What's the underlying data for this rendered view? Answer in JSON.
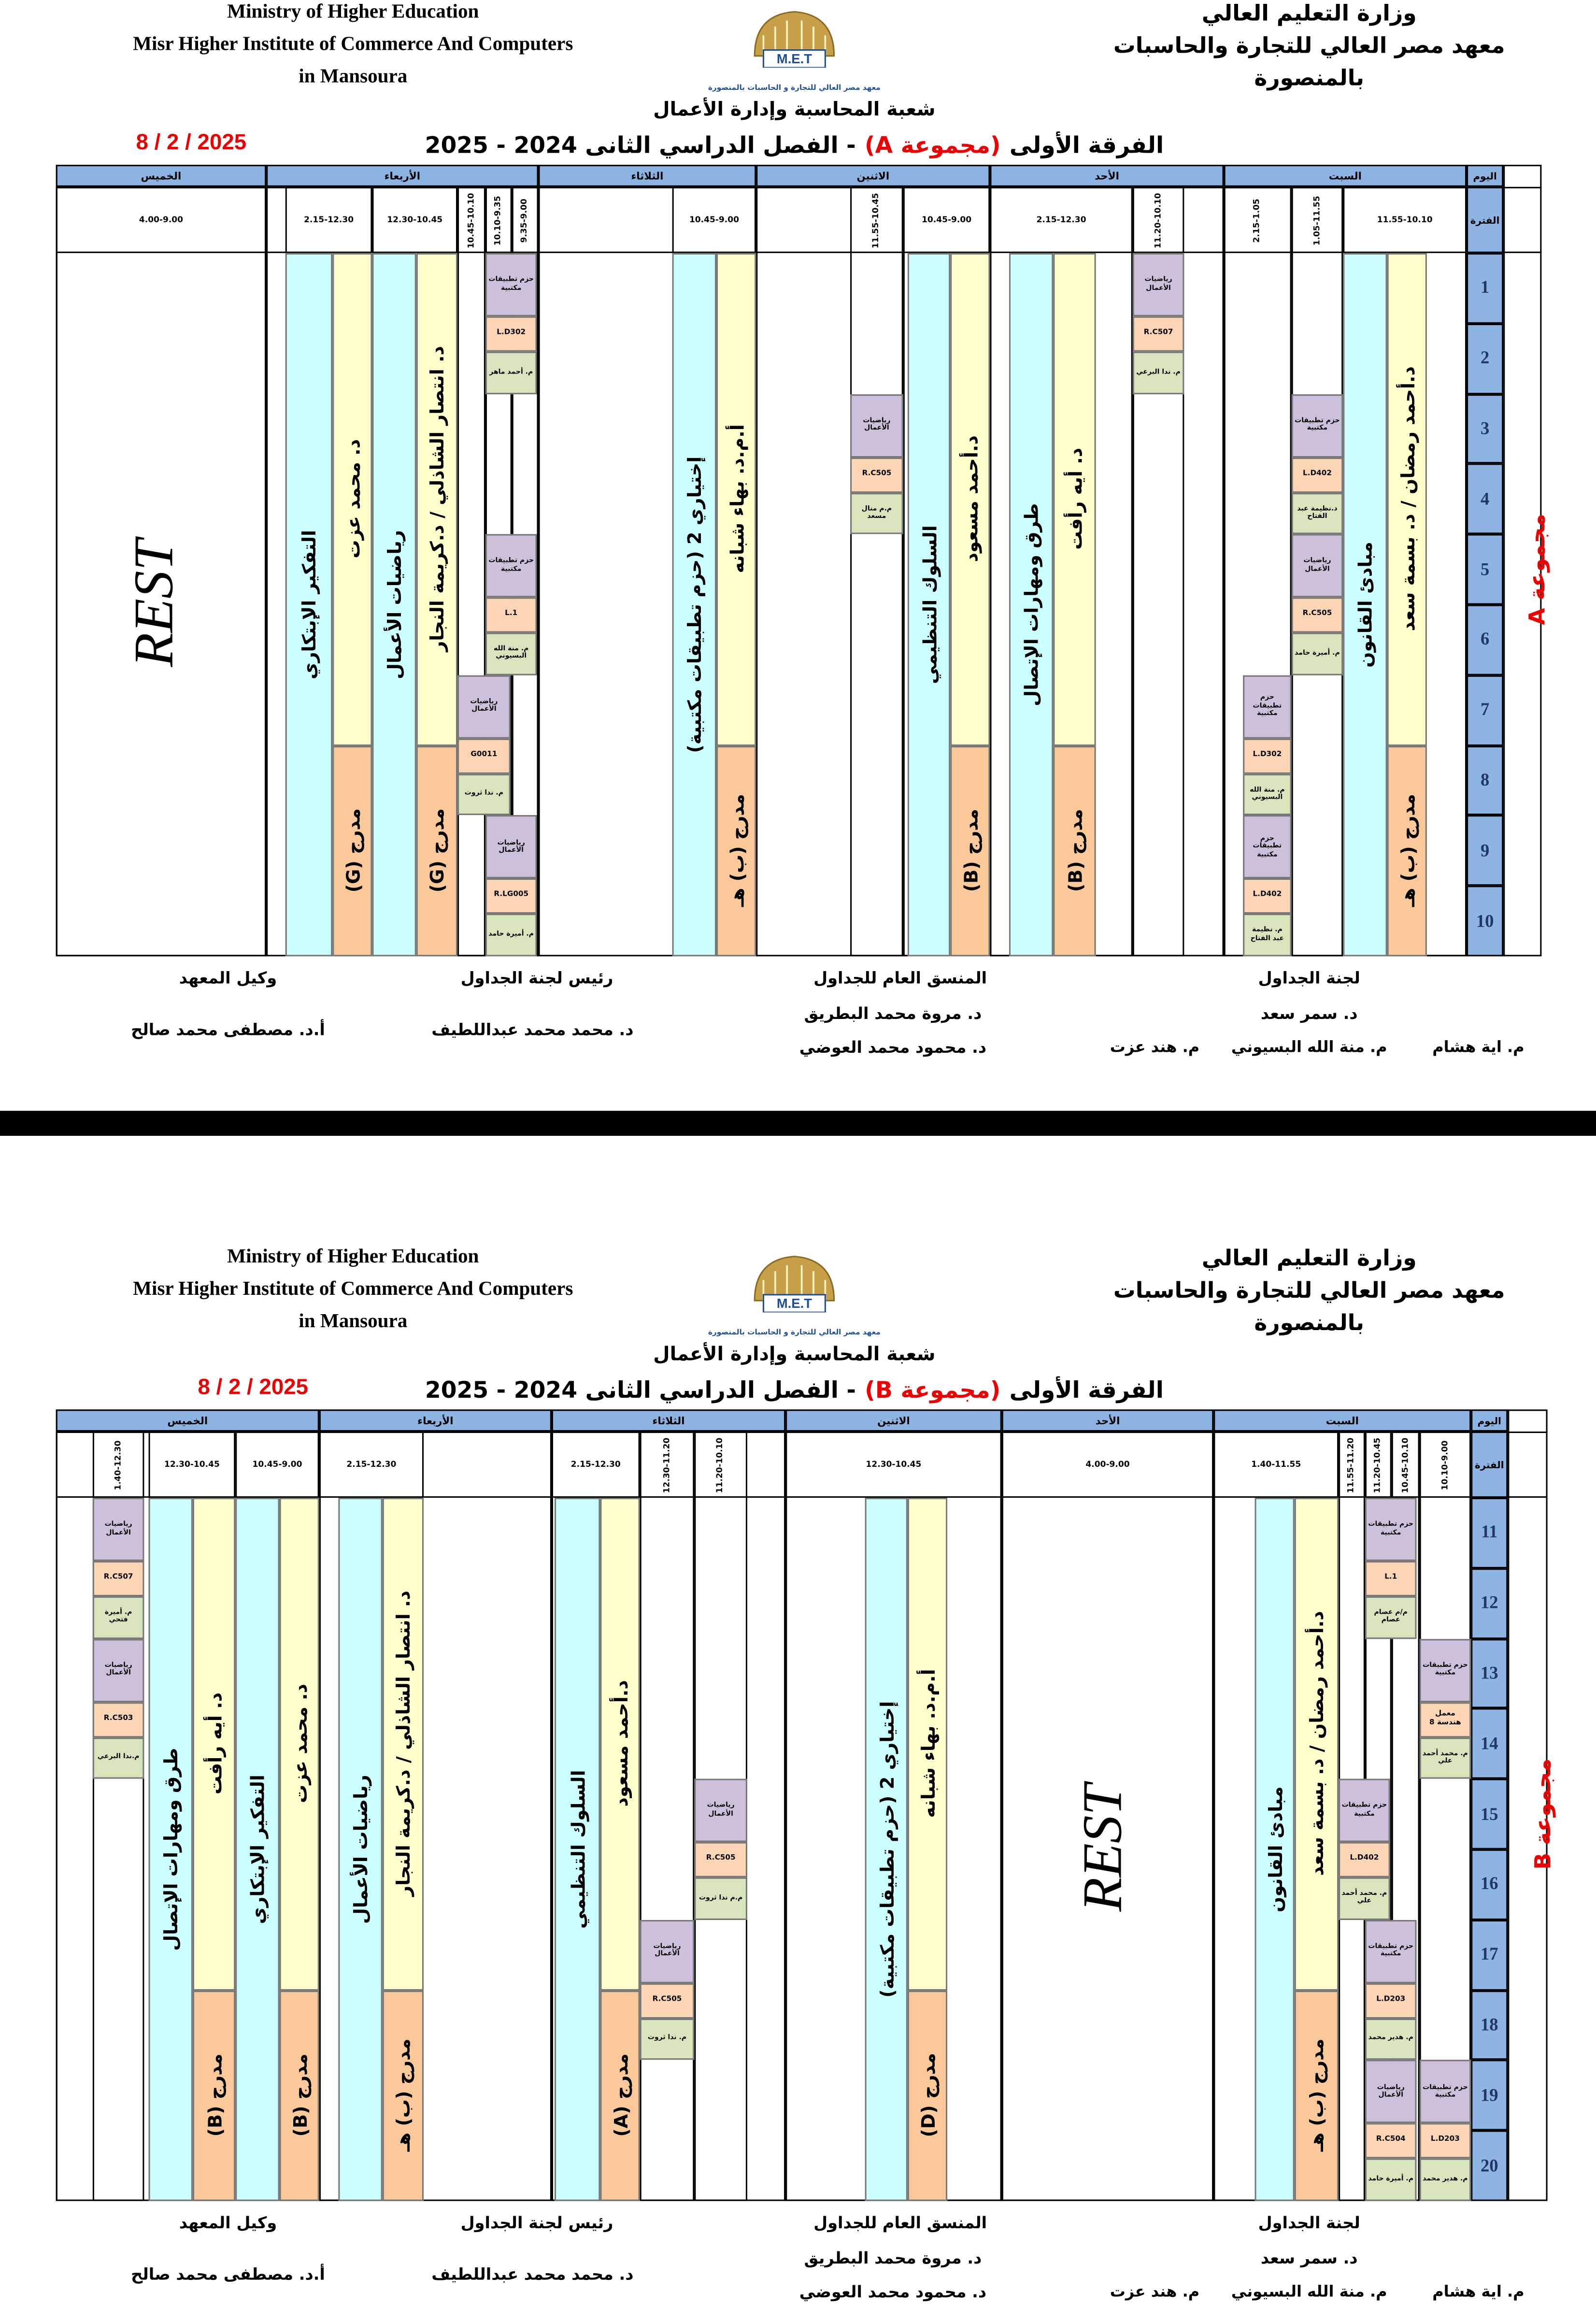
{
  "sheets": [
    {
      "header": {
        "en": [
          "Ministry of Higher Education",
          "Misr Higher Institute of Commerce And Computers",
          "in Mansoura"
        ],
        "ar": [
          "وزارة التعليم العالي",
          "معهد مصر العالي للتجارة والحاسبات",
          "بالمنصورة"
        ],
        "logo": "M.E.T",
        "logo_caption": "معهد مصر العالي للتجارة و الحاسبات بالمنصورة",
        "department": "شعبة المحاسبة وإدارة الأعمال",
        "title": [
          "الفرقة الأولى",
          "(مجموعة A)",
          "- الفصل الدراسي الثانى 2024 - 2025"
        ],
        "date": "8 / 2 / 2025"
      },
      "table": {
        "corner_day": "اليوم",
        "corner_period": "الفترة",
        "group": "مجموعة A",
        "rows": [
          1,
          2,
          3,
          4,
          5,
          6,
          7,
          8,
          9,
          10
        ],
        "days": [
          {
            "name": "السبت",
            "periods": [
              "2.15-1.05",
              "1.05-11.55",
              "11.55-10.10"
            ]
          },
          {
            "name": "الأحد",
            "periods": [
              "2.15-12.30",
              "11.20-10.10"
            ]
          },
          {
            "name": "الاثنين",
            "periods": [
              "11.55-10.45",
              "10.45-9.00"
            ]
          },
          {
            "name": "الثلاثاء",
            "periods": [
              "10.45-9.00"
            ]
          },
          {
            "name": "الأربعاء",
            "periods": [
              "2.15-12.30",
              "12.30-10.45",
              "10.45-10.10",
              "10.10-9.35",
              "9.35-9.00"
            ]
          },
          {
            "name": "الخميس",
            "periods": [
              "4.00-9.00"
            ]
          }
        ],
        "strips": [
          "مبادئ القانون",
          "د.أحمد رمضان / د. بسمة سعد",
          "مدرج (ب) هـ",
          "طرق ومهارات الإتصال",
          "د. أيه رأفت",
          "مدرج (B)",
          "السلوك التنظيمي",
          "د.أحمد مسعود",
          "مدرج (B)",
          "إختياري 2 (حزم تطبيقات مكتبية)",
          "أ.م.د. بهاء شبانه",
          "مدرج (ب) هـ",
          "التفكير الإبتكاري",
          "د. محمد عزت",
          "مدرج (G)",
          "رياضيات الأعمال",
          "د. انتصار الشاذلي / د.كريمة النجار",
          "مدرج (G)"
        ],
        "boxes": [
          {
            "subject": "حزم تطبيقات مكتبية",
            "room": "L.D402",
            "teacher": "د.نظيمة عبد الفتاح"
          },
          {
            "subject": "رياضيات الأعمال",
            "room": "R.C505",
            "teacher": "م. أميرة حامد"
          },
          {
            "subject": "حزم تطبيقات مكتبية",
            "room": "L.D302",
            "teacher": "م. منة الله البسيوني"
          },
          {
            "subject": "حزم تطبيقات مكتبية",
            "room": "L.D402",
            "teacher": "م. نظيمة عبد الفتاح"
          },
          {
            "subject": "رياضيات الأعمال",
            "room": "R.C507",
            "teacher": "م. ندا البرعي"
          },
          {
            "subject": "رياضيات الأعمال",
            "room": "R.C505",
            "teacher": "م.م منال مسعد"
          },
          {
            "subject": "حزم تطبيقات مكتبية",
            "room": "L.D302",
            "teacher": "م. أحمد ماهر"
          },
          {
            "subject": "حزم تطبيقات مكتبية",
            "room": "L.1",
            "teacher": "م. منة الله البسيوني"
          },
          {
            "subject": "رياضيات الأعمال",
            "room": "G0011",
            "teacher": "م. ندا ثروت"
          },
          {
            "subject": "رياضيات الأعمال",
            "room": "R.LG005",
            "teacher": "م. أميرة حامد"
          }
        ],
        "rest": [
          "REST"
        ]
      },
      "footer": {
        "committee": {
          "title": "لجنة الجداول",
          "head": "د. سمر سعد",
          "members": [
            "م. اية هشام",
            "م. منة الله البسيوني",
            "م. هند عزت"
          ]
        },
        "coordinator": {
          "title": "المنسق العام للجداول",
          "names": [
            "د. مروة محمد البطريق",
            "د. محمود محمد العوضي"
          ]
        },
        "chair": {
          "title": "رئيس لجنة الجداول",
          "name": "د. محمد محمد عبداللطيف"
        },
        "deputy": {
          "title": "وكيل المعهد",
          "name": "أ.د. مصطفى محمد صالح"
        }
      }
    },
    {
      "header": {
        "en": [
          "Ministry of Higher Education",
          "Misr Higher Institute of Commerce And Computers",
          "in Mansoura"
        ],
        "ar": [
          "وزارة التعليم العالي",
          "معهد مصر العالي للتجارة والحاسبات",
          "بالمنصورة"
        ],
        "logo": "M.E.T",
        "logo_caption": "معهد مصر العالي للتجارة و الحاسبات بالمنصورة",
        "department": "شعبة المحاسبة وإدارة الأعمال",
        "title": [
          "الفرقة الأولى",
          "(مجموعة B)",
          "- الفصل الدراسي الثانى 2024 - 2025"
        ],
        "date": "8 / 2 / 2025"
      },
      "table": {
        "corner_day": "اليوم",
        "corner_period": "الفترة",
        "group": "مجموعة B",
        "rows": [
          11,
          12,
          13,
          14,
          15,
          16,
          17,
          18,
          19,
          20
        ],
        "days": [
          {
            "name": "السبت",
            "periods": [
              "1.40-11.55",
              "11.55-11.20",
              "11.20-10.45",
              "10.45-10.10",
              "10.10-9.00"
            ]
          },
          {
            "name": "الأحد",
            "periods": [
              "4.00-9.00"
            ]
          },
          {
            "name": "الاثنين",
            "periods": [
              "12.30-10.45"
            ]
          },
          {
            "name": "الثلاثاء",
            "periods": [
              "2.15-12.30",
              "12.30-11.20",
              "11.20-10.10"
            ]
          },
          {
            "name": "الأربعاء",
            "periods": [
              "2.15-12.30"
            ]
          },
          {
            "name": "الخميس",
            "periods": [
              "1.40-12.30",
              "12.30-10.45",
              "10.45-9.00"
            ]
          }
        ],
        "strips": [
          "مبادئ القانون",
          "د.أحمد رمضان / د. بسمة سعد",
          "مدرج (ب) هـ",
          "إختياري 2 (حزم تطبيقات مكتبية)",
          "أ.م.د. بهاء شبانه",
          "مدرج (D)",
          "السلوك التنظيمي",
          "د.أحمد مسعود",
          "مدرج (A)",
          "رياضيات الأعمال",
          "د. انتصار الشاذلي / د.كريمة النجار",
          "مدرج (ب) هـ",
          "طرق ومهارات الإتصال",
          "د. أيه رأفت",
          "مدرج (B)",
          "التفكير الإبتكاري",
          "د. محمد عزت",
          "مدرج (B)"
        ],
        "boxes": [
          {
            "subject": "حزم تطبيقات مكتبية",
            "room": "L.1",
            "teacher": "م/م عصام عصام"
          },
          {
            "subject": "حزم تطبيقات مكتبية",
            "room": "معمل هندسة 8",
            "teacher": "م. محمد أحمد علي"
          },
          {
            "subject": "حزم تطبيقات مكتبية",
            "room": "L.D402",
            "teacher": "م. محمد أحمد علي"
          },
          {
            "subject": "حزم تطبيقات مكتبية",
            "room": "L.D203",
            "teacher": "م. هدير محمد"
          },
          {
            "subject": "رياضيات الأعمال",
            "room": "R.C504",
            "teacher": "م. أميرة حامد"
          },
          {
            "subject": "حزم تطبيقات مكتبية",
            "room": "L.D203",
            "teacher": "م. هدير محمد"
          },
          {
            "subject": "رياضيات الأعمال",
            "room": "R.C505",
            "teacher": "م.م ندا ثروت"
          },
          {
            "subject": "رياضيات الأعمال",
            "room": "R.C505",
            "teacher": "م. ندا ثروت"
          },
          {
            "subject": "رياضيات الأعمال",
            "room": "R.C507",
            "teacher": "م. أميرة فتحي"
          },
          {
            "subject": "رياضيات الأعمال",
            "room": "R.C503",
            "teacher": "م.ندا البرعي"
          }
        ],
        "rest": [
          "REST"
        ]
      },
      "footer": {
        "committee": {
          "title": "لجنة الجداول",
          "head": "د. سمر سعد",
          "members": [
            "م. اية هشام",
            "م. منة الله البسيوني",
            "م. هند عزت"
          ]
        },
        "coordinator": {
          "title": "المنسق العام للجداول",
          "names": [
            "د. مروة محمد البطريق",
            "د. محمود محمد العوضي"
          ]
        },
        "chair": {
          "title": "رئيس لجنة الجداول",
          "name": "د. محمد محمد عبداللطيف"
        },
        "deputy": {
          "title": "وكيل المعهد",
          "name": "أ.د. مصطفى محمد صالح"
        }
      }
    }
  ]
}
